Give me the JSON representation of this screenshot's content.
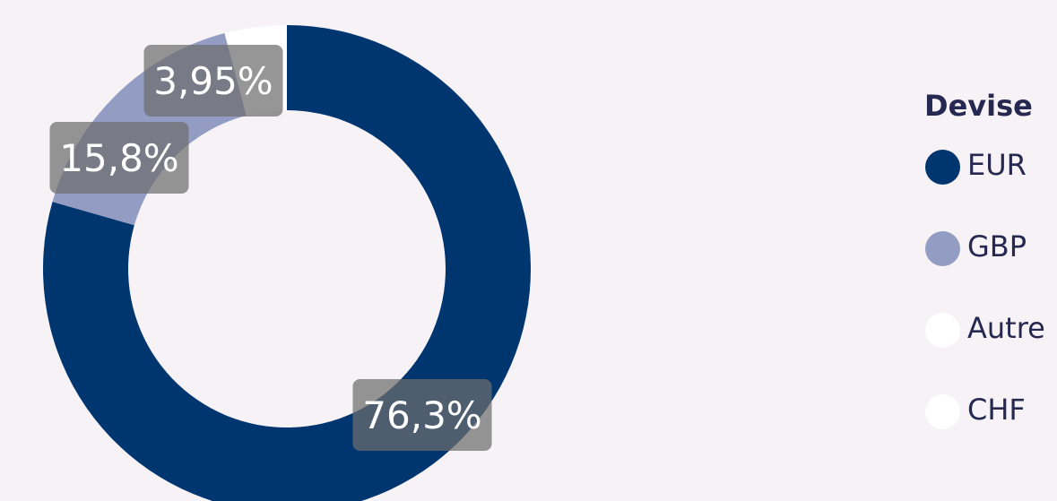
{
  "chart_data": {
    "type": "pie",
    "variant": "donut",
    "legend_title": "Devise",
    "legend_position": "right",
    "slices": [
      {
        "name": "EUR",
        "value": 76.3,
        "label": "76,3%",
        "color": "#003670"
      },
      {
        "name": "CHF",
        "value": 0.0,
        "label": "",
        "color": "#ffffff"
      },
      {
        "name": "GBP",
        "value": 15.8,
        "label": "15,8%",
        "color": "#939dc4"
      },
      {
        "name": "Autre",
        "value": 3.95,
        "label": "3,95%",
        "color": "#ffffff"
      }
    ],
    "legend_order": [
      "EUR",
      "GBP",
      "Autre",
      "CHF"
    ]
  }
}
